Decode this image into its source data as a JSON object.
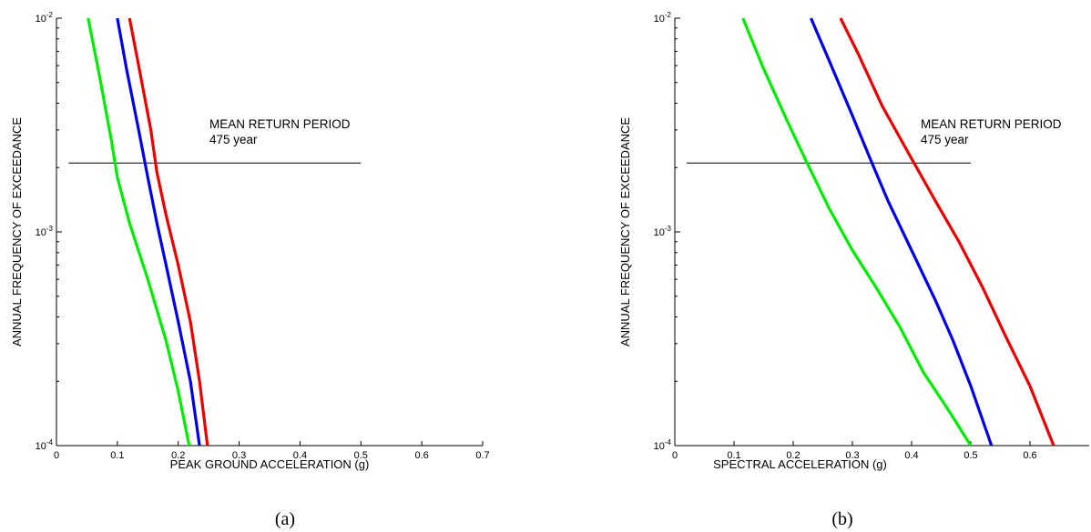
{
  "chart_data": [
    {
      "type": "line",
      "panel_label": "(a)",
      "xlabel": "PEAK GROUND ACCELERATION (g)",
      "ylabel": "ANNUAL FREQUENCY OF EXCEEDANCE",
      "xlim": [
        0,
        0.7
      ],
      "ylim": [
        0.0001,
        0.01
      ],
      "yscale": "log",
      "x_ticks": [
        0,
        0.1,
        0.2,
        0.3,
        0.4,
        0.5,
        0.6,
        0.7
      ],
      "x_tick_labels": [
        "0",
        "0.1",
        "0.2",
        "0.3",
        "0.4",
        "0.5",
        "0.6",
        "0.7"
      ],
      "y_ticks": [
        0.0001,
        0.001,
        0.01
      ],
      "y_tick_labels": [
        {
          "base": "10",
          "exp": "-4"
        },
        {
          "base": "10",
          "exp": "-3"
        },
        {
          "base": "10",
          "exp": "-2"
        }
      ],
      "grid": false,
      "reference_line": {
        "y": 0.0021,
        "x": [
          0.02,
          0.5
        ]
      },
      "annotation": [
        "MEAN RETURN PERIOD",
        "475 year"
      ],
      "series": [
        {
          "color": "#00ee00",
          "x": [
            0.052,
            0.07,
            0.09,
            0.1,
            0.12,
            0.15,
            0.18,
            0.2,
            0.218
          ],
          "y": [
            0.01,
            0.0055,
            0.0027,
            0.0018,
            0.0011,
            0.0006,
            0.00031,
            0.00018,
            0.0001
          ]
        },
        {
          "color": "#0000ee",
          "x": [
            0.1,
            0.115,
            0.135,
            0.15,
            0.165,
            0.18,
            0.2,
            0.22,
            0.235
          ],
          "y": [
            0.01,
            0.0058,
            0.003,
            0.0018,
            0.0011,
            0.0007,
            0.00038,
            0.0002,
            0.0001
          ]
        },
        {
          "color": "#ee0000",
          "x": [
            0.12,
            0.135,
            0.155,
            0.165,
            0.18,
            0.2,
            0.22,
            0.235,
            0.248
          ],
          "y": [
            0.01,
            0.006,
            0.003,
            0.0019,
            0.0012,
            0.0007,
            0.00038,
            0.0002,
            0.0001
          ]
        }
      ]
    },
    {
      "type": "line",
      "panel_label": "(b)",
      "xlabel": "SPECTRAL ACCELERATION (g)",
      "ylabel": "ANNUAL FREQUENCY OF EXCEEDANCE",
      "xlim": [
        0,
        0.7
      ],
      "ylim": [
        0.0001,
        0.01
      ],
      "yscale": "log",
      "x_ticks": [
        0,
        0.1,
        0.2,
        0.3,
        0.4,
        0.5,
        0.6
      ],
      "x_tick_labels": [
        "0",
        "0.1",
        "0.2",
        "0.3",
        "0.4",
        "0.5",
        "0.6"
      ],
      "y_ticks": [
        0.0001,
        0.001,
        0.01
      ],
      "y_tick_labels": [
        {
          "base": "10",
          "exp": "-4"
        },
        {
          "base": "10",
          "exp": "-3"
        },
        {
          "base": "10",
          "exp": "-2"
        }
      ],
      "grid": false,
      "reference_line": {
        "y": 0.0021,
        "x": [
          0.02,
          0.5
        ]
      },
      "annotation": [
        "MEAN RETURN PERIOD",
        "475 year"
      ],
      "series": [
        {
          "color": "#00ee00",
          "x": [
            0.115,
            0.15,
            0.19,
            0.22,
            0.26,
            0.3,
            0.34,
            0.38,
            0.42,
            0.46,
            0.5
          ],
          "y": [
            0.01,
            0.0058,
            0.0033,
            0.0022,
            0.0013,
            0.00082,
            0.00055,
            0.00036,
            0.00022,
            0.00015,
            0.0001
          ]
        },
        {
          "color": "#0000ee",
          "x": [
            0.23,
            0.26,
            0.3,
            0.33,
            0.36,
            0.4,
            0.44,
            0.47,
            0.5,
            0.535
          ],
          "y": [
            0.01,
            0.0064,
            0.0035,
            0.0022,
            0.0014,
            0.00082,
            0.00048,
            0.00031,
            0.00019,
            0.0001
          ]
        },
        {
          "color": "#ee0000",
          "x": [
            0.28,
            0.31,
            0.35,
            0.4,
            0.44,
            0.48,
            0.52,
            0.56,
            0.6,
            0.64
          ],
          "y": [
            0.01,
            0.0068,
            0.0039,
            0.0022,
            0.0014,
            0.0009,
            0.00055,
            0.00032,
            0.00019,
            0.0001
          ]
        }
      ]
    }
  ]
}
